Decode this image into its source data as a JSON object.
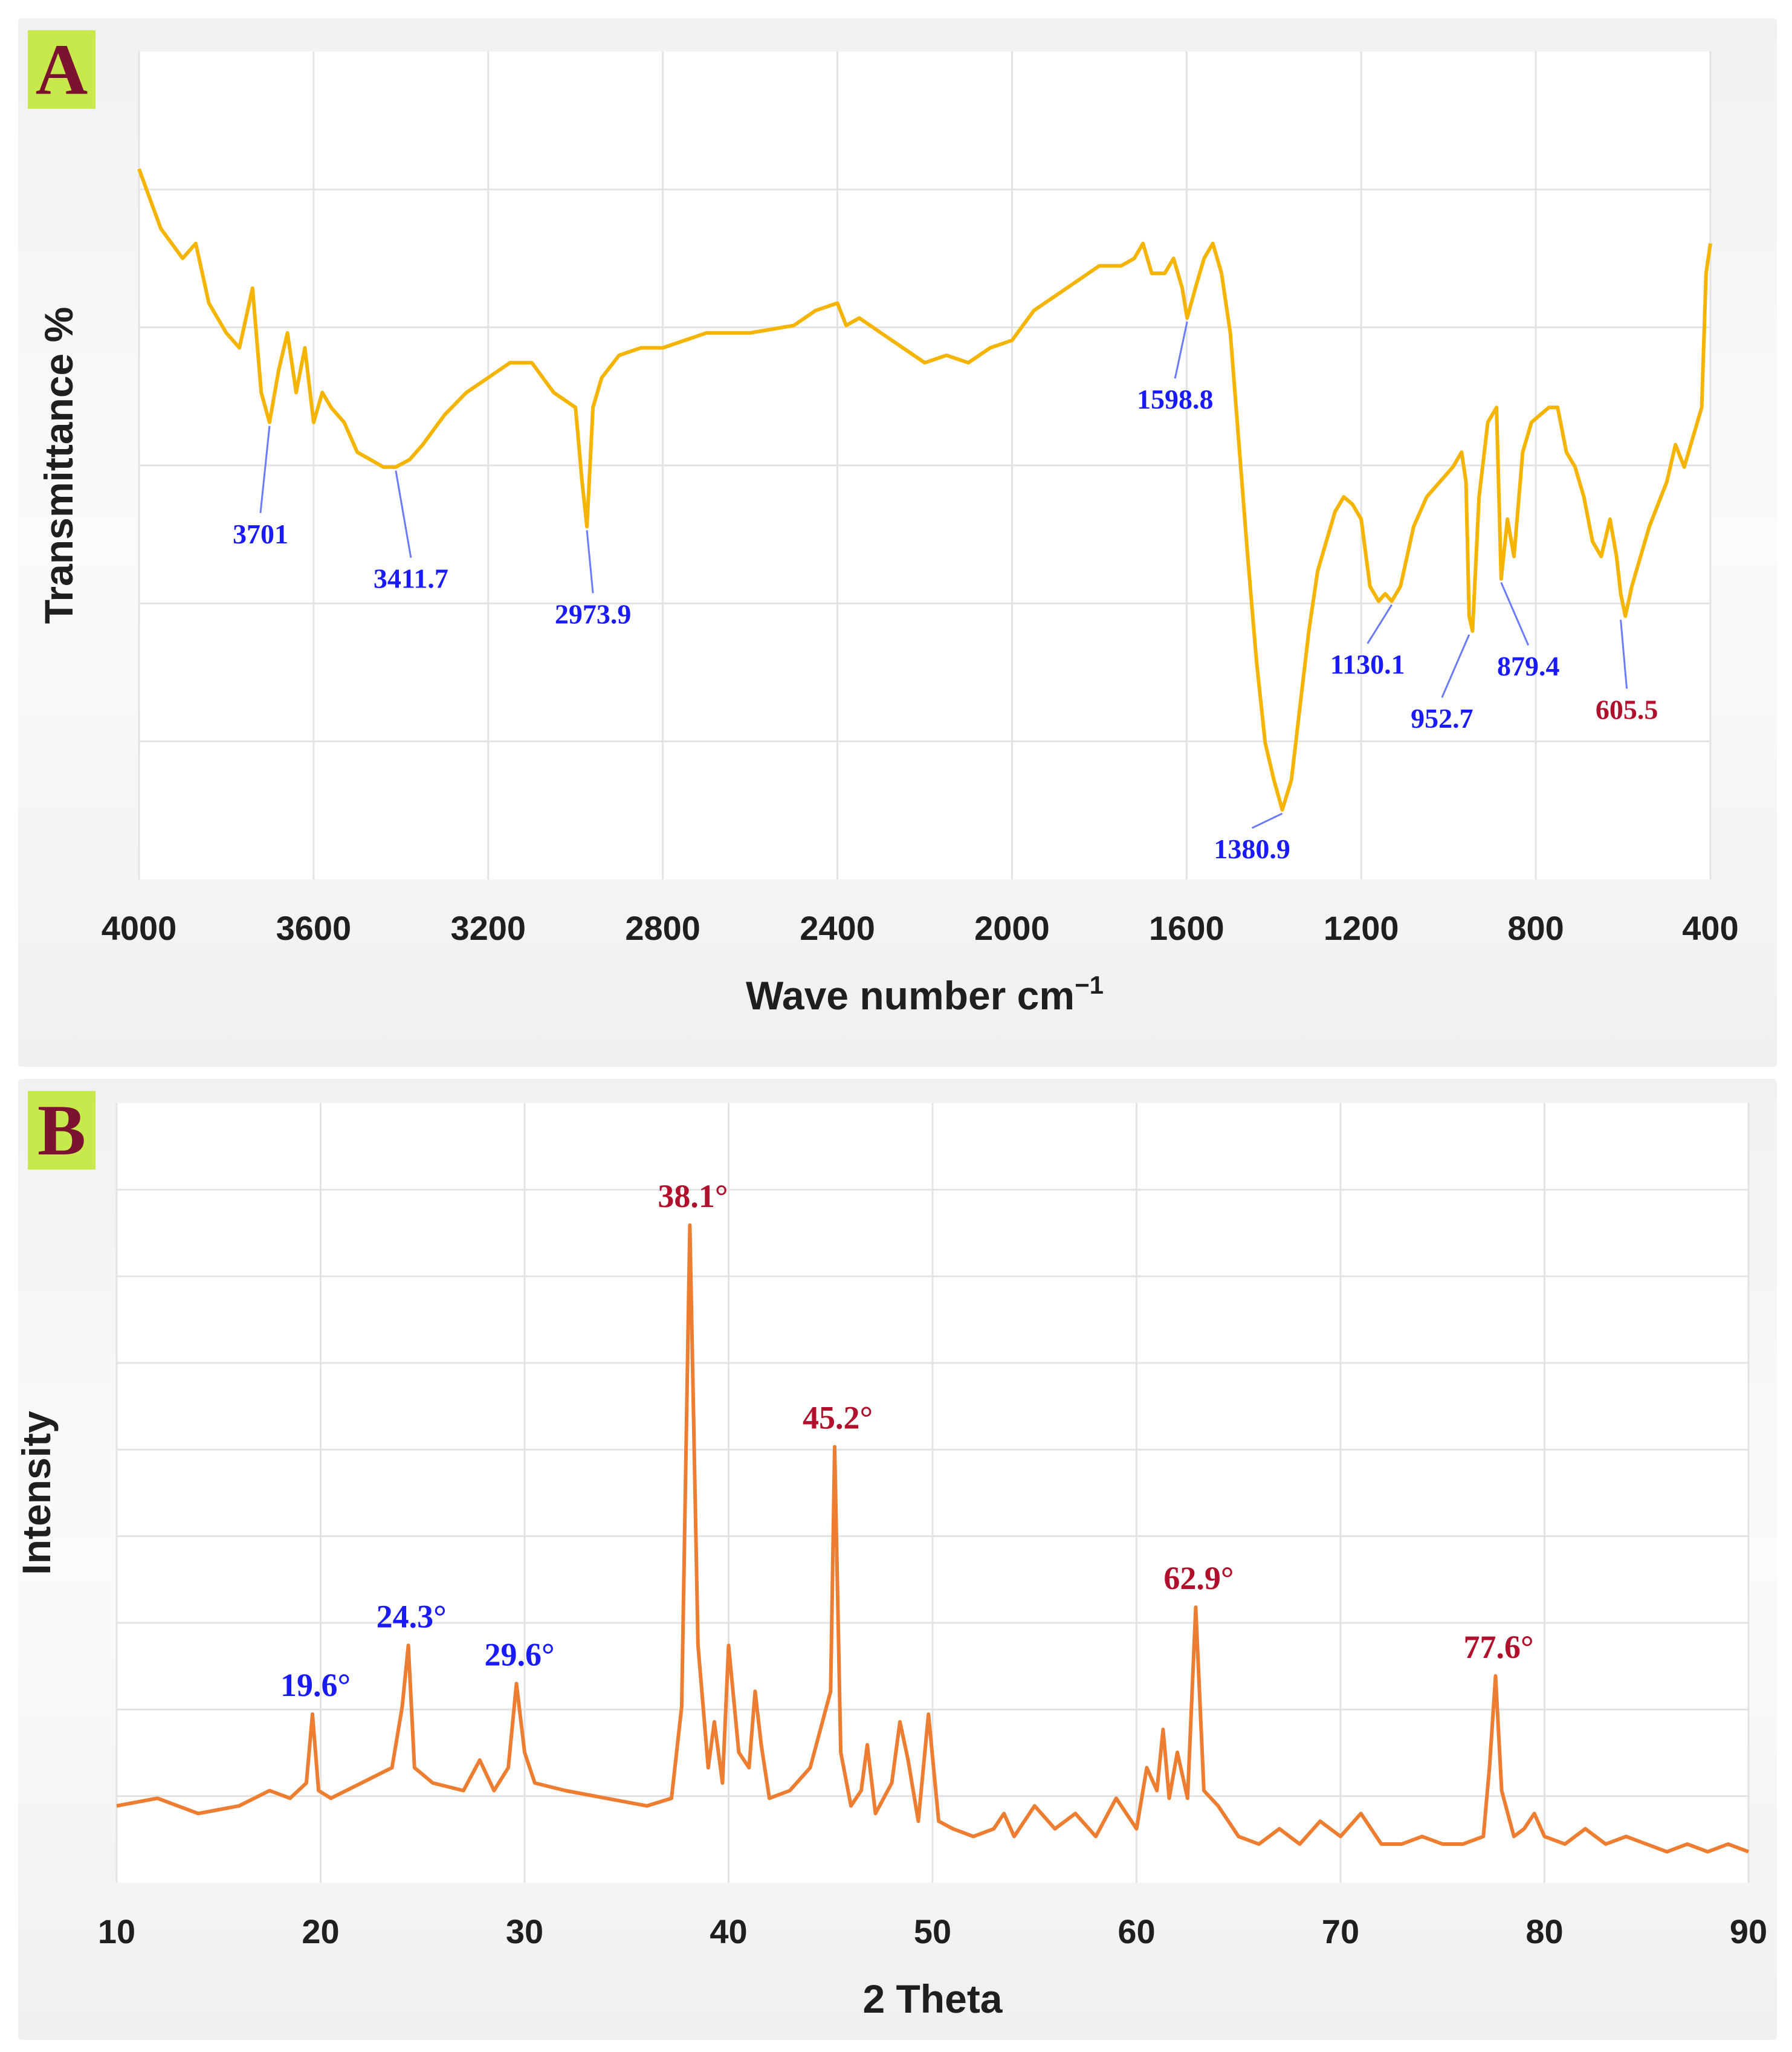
{
  "charts": {
    "A": {
      "badge": "A",
      "ylabel": "Transmittance %",
      "xlabel": "Wave  number cm",
      "xlabel_sup": "−1",
      "line_color": "#f4b400"
    },
    "B": {
      "badge": "B",
      "ylabel": "Intensity",
      "xlabel": "2 Theta",
      "line_color": "#ed7d31"
    }
  },
  "colors": {
    "label_blue": "#1a1aff",
    "label_red": "#b0102b",
    "leader_blue": "#6a7bff",
    "badge_bg": "#c7e94b",
    "badge_text": "#7a1230"
  },
  "chart_data": [
    {
      "type": "line",
      "title": "",
      "xlabel": "Wave  number cm−1",
      "ylabel": "Transmittance %",
      "x_reversed": true,
      "xlim": [
        4000,
        400
      ],
      "ylim": [
        0,
        100
      ],
      "y_ticks_labeled": false,
      "x_ticks": [
        4000,
        3600,
        3200,
        2800,
        2400,
        2000,
        1600,
        1200,
        800,
        400
      ],
      "grid": true,
      "series": [
        {
          "x": [
            4000,
            3950,
            3900,
            3870,
            3840,
            3800,
            3770,
            3740,
            3720,
            3701,
            3680,
            3660,
            3640,
            3620,
            3600,
            3580,
            3560,
            3530,
            3500,
            3470,
            3440,
            3411.7,
            3380,
            3350,
            3300,
            3250,
            3200,
            3150,
            3100,
            3050,
            3000,
            2985,
            2973.9,
            2960,
            2940,
            2900,
            2850,
            2800,
            2700,
            2600,
            2500,
            2450,
            2400,
            2380,
            2350,
            2300,
            2250,
            2200,
            2150,
            2100,
            2050,
            2000,
            1950,
            1900,
            1850,
            1800,
            1750,
            1720,
            1700,
            1680,
            1650,
            1630,
            1610,
            1598.8,
            1580,
            1560,
            1540,
            1520,
            1500,
            1480,
            1460,
            1440,
            1420,
            1400,
            1380.9,
            1360,
            1340,
            1320,
            1300,
            1280,
            1260,
            1240,
            1220,
            1200,
            1180,
            1160,
            1145,
            1130.1,
            1110,
            1080,
            1050,
            1020,
            990,
            970,
            960,
            952.7,
            945,
            930,
            910,
            890,
            879.4,
            865,
            850,
            830,
            810,
            790,
            770,
            750,
            730,
            710,
            690,
            670,
            650,
            630,
            615,
            605.5,
            595,
            580,
            560,
            540,
            520,
            500,
            480,
            460,
            440,
            420,
            410,
            400
          ],
          "y": [
            92,
            84,
            80,
            82,
            74,
            70,
            68,
            76,
            62,
            58,
            65,
            70,
            62,
            68,
            58,
            62,
            60,
            58,
            54,
            53,
            52,
            52,
            53,
            55,
            59,
            62,
            64,
            66,
            66,
            62,
            60,
            50,
            44,
            60,
            64,
            67,
            68,
            68,
            70,
            70,
            71,
            73,
            74,
            71,
            72,
            70,
            68,
            66,
            67,
            66,
            68,
            69,
            73,
            75,
            77,
            79,
            79,
            80,
            82,
            78,
            78,
            80,
            76,
            72,
            76,
            80,
            82,
            78,
            70,
            55,
            40,
            26,
            15,
            10,
            6,
            10,
            20,
            30,
            38,
            42,
            46,
            48,
            47,
            45,
            36,
            34,
            35,
            34,
            36,
            44,
            48,
            50,
            52,
            54,
            50,
            32,
            30,
            48,
            58,
            60,
            37,
            45,
            40,
            54,
            58,
            59,
            60,
            60,
            54,
            52,
            48,
            42,
            40,
            45,
            40,
            35,
            32,
            36,
            40,
            44,
            47,
            50,
            55,
            52,
            56,
            60,
            78,
            82
          ]
        }
      ],
      "annotations": [
        {
          "text": "3701",
          "x": 3701,
          "y": 58,
          "color": "blue"
        },
        {
          "text": "3411.7",
          "x": 3411.7,
          "y": 52,
          "color": "blue"
        },
        {
          "text": "2973.9",
          "x": 2973.9,
          "y": 44,
          "color": "blue"
        },
        {
          "text": "1598.8",
          "x": 1598.8,
          "y": 72,
          "color": "blue"
        },
        {
          "text": "1380.9",
          "x": 1380.9,
          "y": 6,
          "color": "blue"
        },
        {
          "text": "1130.1",
          "x": 1130.1,
          "y": 34,
          "color": "blue"
        },
        {
          "text": "952.7",
          "x": 952.7,
          "y": 30,
          "color": "blue"
        },
        {
          "text": "879.4",
          "x": 879.4,
          "y": 37,
          "color": "blue"
        },
        {
          "text": "605.5",
          "x": 605.5,
          "y": 32,
          "color": "red"
        }
      ]
    },
    {
      "type": "line",
      "title": "",
      "xlabel": "2 Theta",
      "ylabel": "Intensity",
      "xlim": [
        10,
        90
      ],
      "ylim": [
        0,
        100
      ],
      "y_ticks_labeled": false,
      "x_ticks": [
        10,
        20,
        30,
        40,
        50,
        60,
        70,
        80,
        90
      ],
      "grid": true,
      "series": [
        {
          "x": [
            10,
            12,
            14,
            16,
            17.5,
            18.5,
            19.3,
            19.6,
            19.9,
            20.5,
            22,
            23.5,
            24,
            24.3,
            24.6,
            25.5,
            27,
            27.8,
            28.5,
            29.2,
            29.6,
            30,
            30.5,
            32,
            34,
            36,
            37.2,
            37.7,
            38.1,
            38.5,
            39,
            39.3,
            39.7,
            40,
            40.5,
            41,
            41.3,
            41.6,
            42,
            43,
            44,
            44.6,
            45,
            45.2,
            45.5,
            46,
            46.5,
            46.8,
            47.2,
            48,
            48.4,
            48.8,
            49.3,
            49.8,
            50.3,
            51,
            52,
            53,
            53.5,
            54,
            55,
            56,
            57,
            58,
            59,
            60,
            60.5,
            61,
            61.3,
            61.6,
            62,
            62.5,
            62.9,
            63.3,
            64,
            64.5,
            65,
            66,
            67,
            68,
            69,
            70,
            71,
            72,
            73,
            74,
            75,
            76,
            77,
            77.3,
            77.6,
            77.9,
            78.5,
            79,
            79.5,
            80,
            81,
            82,
            83,
            84,
            85,
            86,
            87,
            88,
            89,
            90
          ],
          "y": [
            7,
            8,
            6,
            7,
            9,
            8,
            10,
            19,
            9,
            8,
            10,
            12,
            20,
            28,
            12,
            10,
            9,
            13,
            9,
            12,
            23,
            14,
            10,
            9,
            8,
            7,
            8,
            20,
            83,
            28,
            12,
            18,
            10,
            28,
            14,
            12,
            22,
            15,
            8,
            9,
            12,
            18,
            22,
            54,
            14,
            7,
            9,
            15,
            6,
            10,
            18,
            13,
            5,
            19,
            5,
            4,
            3,
            4,
            6,
            3,
            7,
            4,
            6,
            3,
            8,
            4,
            12,
            9,
            17,
            8,
            14,
            8,
            33,
            9,
            7,
            5,
            3,
            2,
            4,
            2,
            5,
            3,
            6,
            2,
            2,
            3,
            2,
            2,
            3,
            12,
            24,
            9,
            3,
            4,
            6,
            3,
            2,
            4,
            2,
            3,
            2,
            1,
            2,
            1,
            2,
            1
          ]
        }
      ],
      "annotations": [
        {
          "text": "19.6°",
          "x": 19.6,
          "y": 19,
          "color": "blue"
        },
        {
          "text": "24.3°",
          "x": 24.3,
          "y": 28,
          "color": "blue"
        },
        {
          "text": "29.6°",
          "x": 29.6,
          "y": 23,
          "color": "blue"
        },
        {
          "text": "38.1°",
          "x": 38.1,
          "y": 83,
          "color": "red"
        },
        {
          "text": "45.2°",
          "x": 45.2,
          "y": 54,
          "color": "red"
        },
        {
          "text": "62.9°",
          "x": 62.9,
          "y": 33,
          "color": "red"
        },
        {
          "text": "77.6°",
          "x": 77.6,
          "y": 24,
          "color": "red"
        }
      ]
    }
  ]
}
